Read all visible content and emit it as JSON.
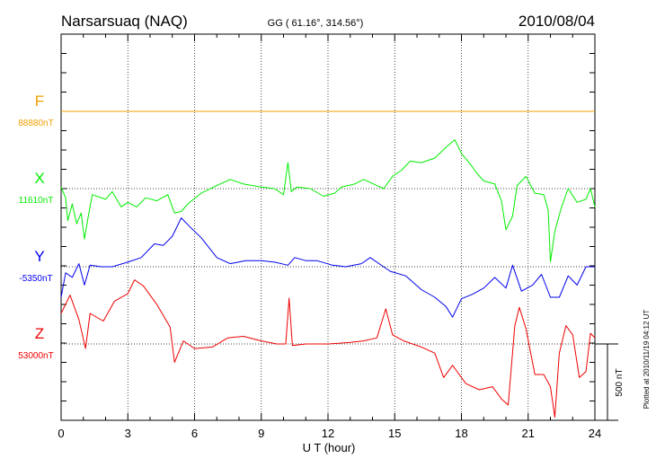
{
  "header": {
    "station": "Narsarsuaq (NAQ)",
    "coords": "GG ( 61.16°, 314.56°)",
    "date": "2010/08/04"
  },
  "plotted_note": "Plotted at 2010/11/19 04:12 UT",
  "scale_label": "500 nT",
  "chart_data": {
    "type": "line",
    "title": "Narsarsuaq (NAQ)",
    "xlabel": "U T (hour)",
    "ylabel": "",
    "xlim": [
      0,
      24
    ],
    "x_ticks": [
      "0",
      "3",
      "6",
      "9",
      "12",
      "15",
      "18",
      "21",
      "24"
    ],
    "grid": true,
    "scale_bar_nT": 500,
    "series": [
      {
        "name": "F",
        "baseline_label": "88880nT",
        "color": "#f0a000",
        "offset_nT": 0,
        "points": [
          [
            0,
            0
          ],
          [
            6,
            0
          ],
          [
            12,
            0
          ],
          [
            18,
            0
          ],
          [
            24,
            0
          ]
        ]
      },
      {
        "name": "X",
        "baseline_label": "11610nT",
        "color": "#00ee00",
        "offset_nT": 0,
        "points": [
          [
            0,
            10
          ],
          [
            0.2,
            -60
          ],
          [
            0.3,
            -210
          ],
          [
            0.5,
            -100
          ],
          [
            0.7,
            -230
          ],
          [
            0.9,
            -160
          ],
          [
            1.05,
            -330
          ],
          [
            1.2,
            -200
          ],
          [
            1.4,
            -40
          ],
          [
            2.0,
            -70
          ],
          [
            2.3,
            -20
          ],
          [
            2.7,
            -120
          ],
          [
            3.0,
            -90
          ],
          [
            3.4,
            -120
          ],
          [
            3.8,
            -60
          ],
          [
            4.3,
            -80
          ],
          [
            4.8,
            -40
          ],
          [
            5.1,
            -160
          ],
          [
            5.4,
            -150
          ],
          [
            5.7,
            -100
          ],
          [
            6.3,
            -30
          ],
          [
            7.0,
            20
          ],
          [
            7.6,
            60
          ],
          [
            8.2,
            30
          ],
          [
            9.0,
            10
          ],
          [
            9.6,
            0
          ],
          [
            10.0,
            -40
          ],
          [
            10.2,
            170
          ],
          [
            10.35,
            -20
          ],
          [
            10.6,
            10
          ],
          [
            11.2,
            0
          ],
          [
            11.8,
            -50
          ],
          [
            12.3,
            -30
          ],
          [
            12.6,
            10
          ],
          [
            13.2,
            30
          ],
          [
            13.6,
            60
          ],
          [
            14.2,
            20
          ],
          [
            14.5,
            0
          ],
          [
            14.9,
            80
          ],
          [
            15.3,
            120
          ],
          [
            15.7,
            180
          ],
          [
            16.2,
            170
          ],
          [
            16.8,
            200
          ],
          [
            17.3,
            270
          ],
          [
            17.7,
            320
          ],
          [
            18.0,
            230
          ],
          [
            18.4,
            160
          ],
          [
            18.7,
            100
          ],
          [
            19.0,
            50
          ],
          [
            19.5,
            30
          ],
          [
            19.8,
            -80
          ],
          [
            20.0,
            -270
          ],
          [
            20.3,
            -180
          ],
          [
            20.5,
            20
          ],
          [
            20.9,
            80
          ],
          [
            21.3,
            -30
          ],
          [
            21.7,
            -40
          ],
          [
            21.9,
            -140
          ],
          [
            22.0,
            -480
          ],
          [
            22.2,
            -280
          ],
          [
            22.5,
            -120
          ],
          [
            22.8,
            0
          ],
          [
            23.2,
            -90
          ],
          [
            23.6,
            -70
          ],
          [
            23.8,
            0
          ],
          [
            24.0,
            -120
          ]
        ]
      },
      {
        "name": "Y",
        "baseline_label": "-5350nT",
        "color": "#0000ee",
        "offset_nT": 0,
        "points": [
          [
            0,
            -200
          ],
          [
            0.2,
            -40
          ],
          [
            0.5,
            -70
          ],
          [
            0.8,
            20
          ],
          [
            1.05,
            -120
          ],
          [
            1.3,
            10
          ],
          [
            1.8,
            0
          ],
          [
            2.3,
            0
          ],
          [
            3.0,
            30
          ],
          [
            3.6,
            60
          ],
          [
            4.2,
            150
          ],
          [
            4.6,
            140
          ],
          [
            5.0,
            200
          ],
          [
            5.4,
            320
          ],
          [
            5.8,
            260
          ],
          [
            6.3,
            190
          ],
          [
            7.0,
            60
          ],
          [
            7.6,
            20
          ],
          [
            8.3,
            40
          ],
          [
            9.0,
            40
          ],
          [
            9.6,
            30
          ],
          [
            10.2,
            10
          ],
          [
            10.5,
            60
          ],
          [
            11.0,
            40
          ],
          [
            11.5,
            40
          ],
          [
            12.2,
            10
          ],
          [
            12.8,
            0
          ],
          [
            13.5,
            20
          ],
          [
            13.9,
            60
          ],
          [
            14.3,
            20
          ],
          [
            14.8,
            -30
          ],
          [
            15.5,
            -60
          ],
          [
            16.2,
            -150
          ],
          [
            16.8,
            -200
          ],
          [
            17.3,
            -260
          ],
          [
            17.6,
            -330
          ],
          [
            18.0,
            -210
          ],
          [
            18.5,
            -180
          ],
          [
            19.0,
            -140
          ],
          [
            19.5,
            -70
          ],
          [
            20.0,
            -140
          ],
          [
            20.3,
            10
          ],
          [
            20.7,
            -160
          ],
          [
            21.2,
            -120
          ],
          [
            21.6,
            -50
          ],
          [
            22.0,
            -200
          ],
          [
            22.4,
            -200
          ],
          [
            22.8,
            -60
          ],
          [
            23.2,
            -120
          ],
          [
            23.6,
            0
          ],
          [
            24.0,
            0
          ]
        ]
      },
      {
        "name": "Z",
        "baseline_label": "53000nT",
        "color": "#ee0000",
        "offset_nT": 0,
        "points": [
          [
            0,
            200
          ],
          [
            0.4,
            320
          ],
          [
            0.8,
            160
          ],
          [
            1.1,
            -30
          ],
          [
            1.3,
            200
          ],
          [
            1.9,
            150
          ],
          [
            2.4,
            280
          ],
          [
            3.0,
            330
          ],
          [
            3.3,
            420
          ],
          [
            3.7,
            380
          ],
          [
            4.3,
            260
          ],
          [
            4.9,
            110
          ],
          [
            5.1,
            -120
          ],
          [
            5.5,
            20
          ],
          [
            6.0,
            -30
          ],
          [
            6.8,
            -20
          ],
          [
            7.5,
            40
          ],
          [
            8.2,
            50
          ],
          [
            9.0,
            20
          ],
          [
            9.7,
            0
          ],
          [
            10.1,
            0
          ],
          [
            10.25,
            300
          ],
          [
            10.4,
            -10
          ],
          [
            11.0,
            0
          ],
          [
            12.0,
            0
          ],
          [
            13.0,
            10
          ],
          [
            13.6,
            20
          ],
          [
            14.2,
            40
          ],
          [
            14.6,
            230
          ],
          [
            14.9,
            60
          ],
          [
            15.4,
            20
          ],
          [
            16.2,
            -20
          ],
          [
            16.8,
            -60
          ],
          [
            17.2,
            -220
          ],
          [
            17.6,
            -140
          ],
          [
            18.2,
            -260
          ],
          [
            18.8,
            -300
          ],
          [
            19.4,
            -280
          ],
          [
            19.8,
            -360
          ],
          [
            20.1,
            -400
          ],
          [
            20.4,
            120
          ],
          [
            20.6,
            240
          ],
          [
            20.9,
            100
          ],
          [
            21.3,
            -200
          ],
          [
            21.7,
            -200
          ],
          [
            22.0,
            -280
          ],
          [
            22.2,
            -480
          ],
          [
            22.4,
            -60
          ],
          [
            22.7,
            120
          ],
          [
            23.0,
            60
          ],
          [
            23.3,
            -220
          ],
          [
            23.6,
            -180
          ],
          [
            23.8,
            70
          ],
          [
            24.0,
            40
          ]
        ]
      }
    ]
  }
}
